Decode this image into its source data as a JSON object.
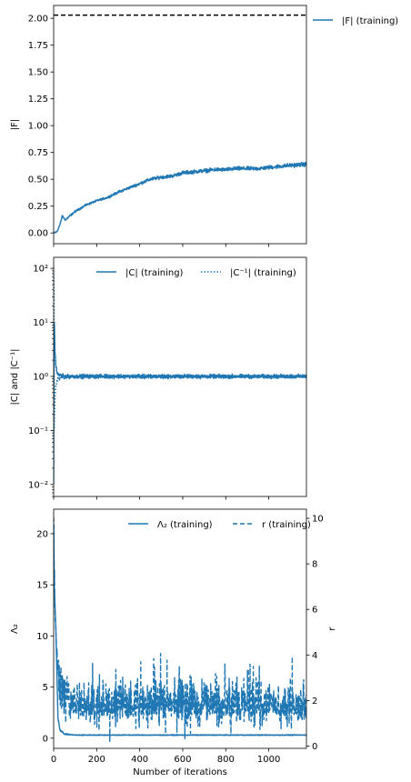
{
  "chart_data": [
    {
      "type": "line",
      "ylabel": "|F|",
      "xlim": [
        0,
        1175
      ],
      "ylim": [
        -0.1,
        2.12
      ],
      "yticks": [
        "0.00",
        "0.25",
        "0.50",
        "0.75",
        "1.00",
        "1.25",
        "1.50",
        "1.75",
        "2.00"
      ],
      "ytick_values": [
        0,
        0.25,
        0.5,
        0.75,
        1.0,
        1.25,
        1.5,
        1.75,
        2.0
      ],
      "grid": false,
      "legend_placement": "outside right",
      "reference_line": {
        "y": 2.03,
        "style": "dashed",
        "color": "#000000"
      },
      "series": [
        {
          "name": "|F| (training)",
          "color": "#1f77b4",
          "style": "solid",
          "x": [
            0,
            15,
            30,
            40,
            55,
            70,
            100,
            150,
            200,
            250,
            300,
            350,
            400,
            450,
            500,
            550,
            600,
            650,
            700,
            750,
            800,
            850,
            900,
            950,
            1000,
            1050,
            1100,
            1175
          ],
          "y": [
            0.0,
            0.01,
            0.08,
            0.16,
            0.12,
            0.15,
            0.2,
            0.26,
            0.3,
            0.33,
            0.38,
            0.42,
            0.46,
            0.5,
            0.52,
            0.53,
            0.56,
            0.57,
            0.58,
            0.59,
            0.59,
            0.6,
            0.6,
            0.6,
            0.61,
            0.62,
            0.63,
            0.64
          ],
          "noise": 0.025
        }
      ]
    },
    {
      "type": "line",
      "ylabel": "|C| and |C⁻¹|",
      "yscale": "log",
      "xlim": [
        0,
        1175
      ],
      "ylim": [
        0.006,
        160
      ],
      "yticks": [
        "10⁻²",
        "10⁻¹",
        "10⁰",
        "10¹",
        "10²"
      ],
      "ytick_values": [
        0.01,
        0.1,
        1,
        10,
        100
      ],
      "grid": false,
      "legend_placement": "top-right",
      "series": [
        {
          "name": "|C| (training)",
          "color": "#1f77b4",
          "style": "solid",
          "x": [
            0,
            3,
            6,
            10,
            15,
            20,
            30,
            50,
            100,
            1175
          ],
          "y": [
            0.01,
            10,
            3,
            1.6,
            1.2,
            1.1,
            1.05,
            1.0,
            1.0,
            1.0
          ],
          "noise": 0.07
        },
        {
          "name": "|C⁻¹| (training)",
          "color": "#1f77b4",
          "style": "dotted",
          "x": [
            0,
            3,
            6,
            10,
            15,
            20,
            30,
            50,
            100,
            1175
          ],
          "y": [
            100,
            0.1,
            0.33,
            0.63,
            0.83,
            0.91,
            0.95,
            1.0,
            1.0,
            1.0
          ],
          "noise": 0.07
        }
      ]
    },
    {
      "type": "line",
      "xlabel": "Number of iterations",
      "ylabel": "Λ₂",
      "ylabel_right": "r",
      "xlim": [
        0,
        1175
      ],
      "ylim": [
        -1.0,
        22.4
      ],
      "ylim_right": [
        -0.1,
        10.4
      ],
      "xticks": [
        "0",
        "200",
        "400",
        "600",
        "800",
        "1000"
      ],
      "xtick_values": [
        0,
        200,
        400,
        600,
        800,
        1000
      ],
      "yticks": [
        "0",
        "5",
        "10",
        "15",
        "20"
      ],
      "ytick_values": [
        0,
        5,
        10,
        15,
        20
      ],
      "yticks_right": [
        "0",
        "2",
        "4",
        "6",
        "8",
        "10"
      ],
      "ytick_values_right": [
        0,
        2,
        4,
        6,
        8,
        10
      ],
      "grid": false,
      "legend_placement": "top-right",
      "series": [
        {
          "name": "Λ₂ (training)",
          "axis": "left",
          "color": "#1f77b4",
          "style": "solid",
          "x": [
            0,
            3,
            10,
            20,
            30,
            50,
            100,
            1175
          ],
          "y": [
            21,
            15,
            11,
            2,
            0.8,
            0.4,
            0.3,
            0.3
          ],
          "noise": 0.12
        },
        {
          "name": "r (training)",
          "axis": "right",
          "color": "#1f77b4",
          "style": "dashed",
          "x": [
            0,
            3,
            10,
            20,
            40,
            80,
            1175
          ],
          "y": [
            10.2,
            7.5,
            5.0,
            3.0,
            2.5,
            1.8,
            1.7
          ],
          "noise": 0.9
        }
      ]
    }
  ]
}
